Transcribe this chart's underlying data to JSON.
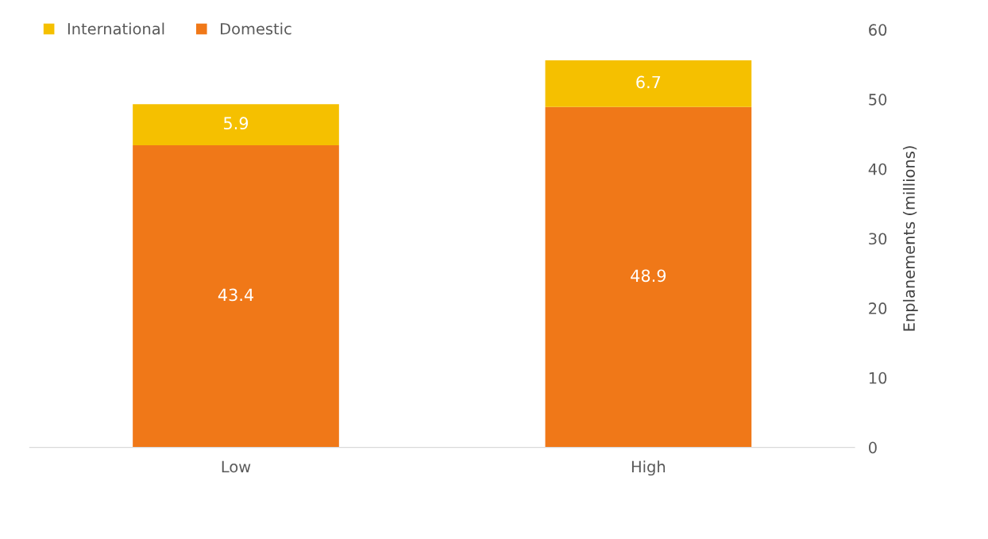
{
  "chart_data": {
    "type": "bar",
    "stacked": true,
    "ylabel": "Enplanements (millions)",
    "categories": [
      "Low",
      "High"
    ],
    "series": [
      {
        "name": "Domestic",
        "color": "#f07818",
        "values": [
          43.4,
          48.9
        ]
      },
      {
        "name": "International",
        "color": "#f5c000",
        "values": [
          5.9,
          6.7
        ]
      }
    ],
    "ylim": [
      0,
      60
    ],
    "yticks": [
      0,
      10,
      20,
      30,
      40,
      50,
      60
    ],
    "grid": false,
    "data_labels": true,
    "legend": "top left"
  }
}
